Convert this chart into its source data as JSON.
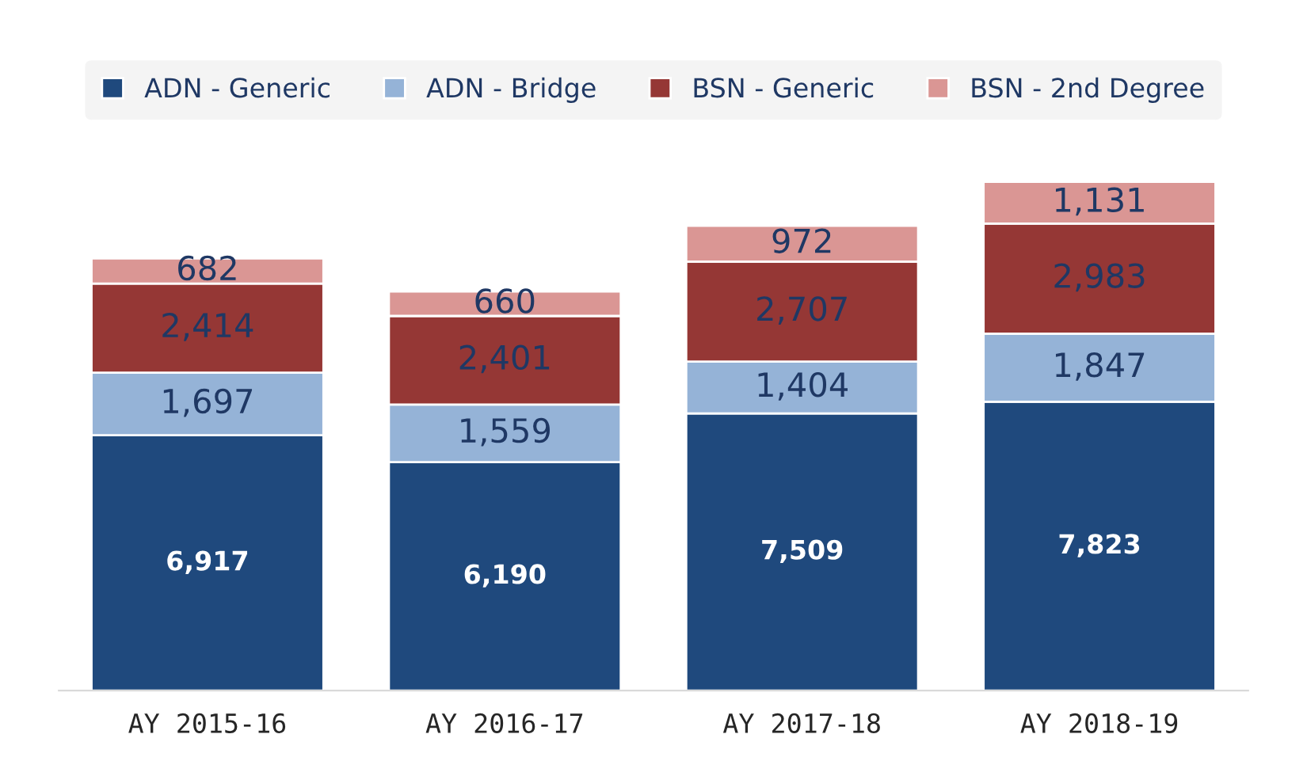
{
  "chart_data": {
    "type": "bar",
    "stacked": true,
    "legend": "top",
    "grid": false,
    "categories": [
      "AY 2015-16",
      "AY 2016-17",
      "AY 2017-18",
      "AY 2018-19"
    ],
    "series": [
      {
        "name": "ADN - Generic",
        "color": "#1f497d",
        "values": [
          6917,
          6190,
          7509,
          7823
        ],
        "value_labels": [
          "6,917",
          "6,190",
          "7,509",
          "7,823"
        ]
      },
      {
        "name": "ADN - Bridge",
        "color": "#95b3d7",
        "values": [
          1697,
          1559,
          1404,
          1847
        ],
        "value_labels": [
          "1,697",
          "1,559",
          "1,404",
          "1,847"
        ]
      },
      {
        "name": "BSN - Generic",
        "color": "#953735",
        "values": [
          2414,
          2401,
          2707,
          2983
        ],
        "value_labels": [
          "2,414",
          "2,401",
          "2,707",
          "2,983"
        ]
      },
      {
        "name": "BSN - 2nd Degree",
        "color": "#da9694",
        "values": [
          682,
          660,
          972,
          1131
        ],
        "value_labels": [
          "682",
          "660",
          "972",
          "1,131"
        ]
      }
    ]
  }
}
